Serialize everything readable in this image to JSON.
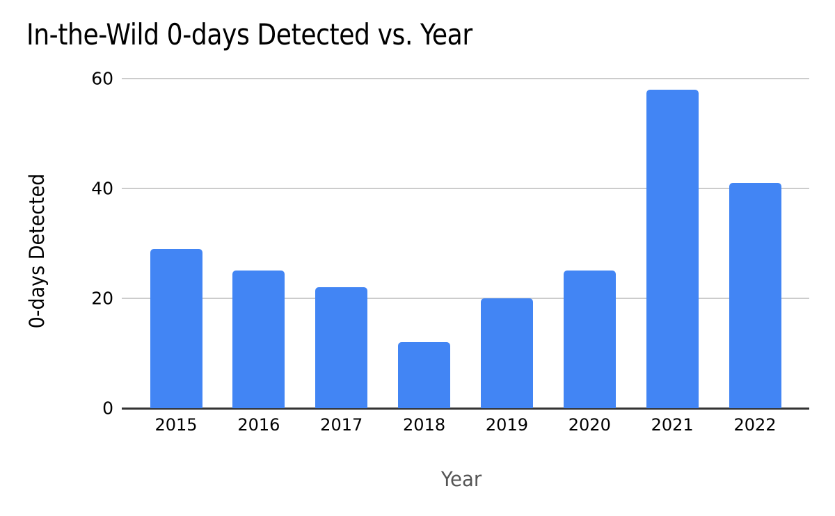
{
  "page": {
    "background": "#ffffff"
  },
  "chart_data": {
    "type": "bar",
    "title": "In-the-Wild 0-days Detected vs. Year",
    "xlabel": "Year",
    "ylabel": "0-days Detected",
    "categories": [
      "2015",
      "2016",
      "2017",
      "2018",
      "2019",
      "2020",
      "2021",
      "2022"
    ],
    "values": [
      29,
      25,
      22,
      12,
      20,
      25,
      58,
      41
    ],
    "ylim": [
      0,
      60
    ],
    "yticks": [
      0,
      20,
      40,
      60
    ],
    "grid": true,
    "legend_position": "none",
    "colors": {
      "bar": "#4285f4",
      "gridline": "#cccccc",
      "axis_line": "#333333",
      "tick_label": "#000000",
      "title": "#000000",
      "x_axis_title": "#555555"
    }
  }
}
